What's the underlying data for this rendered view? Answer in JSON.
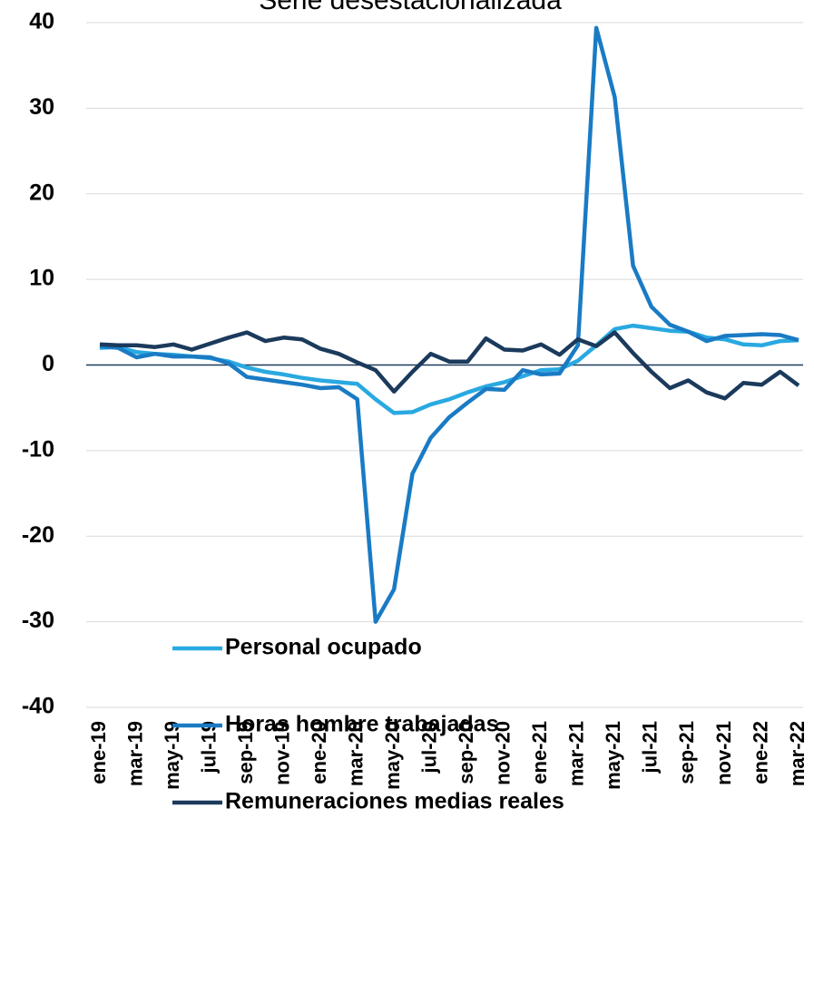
{
  "chart_data": {
    "type": "line",
    "title": "Serie desestacionalizada",
    "categories": [
      "ene-19",
      null,
      "mar-19",
      null,
      "may-19",
      null,
      "jul-19",
      null,
      "sep-19",
      null,
      "nov-19",
      null,
      "ene-20",
      null,
      "mar-20",
      null,
      "may-20",
      null,
      "jul-20",
      null,
      "sep-20",
      null,
      "nov-20",
      null,
      "ene-21",
      null,
      "mar-21",
      null,
      "may-21",
      null,
      "jul-21",
      null,
      "sep-21",
      null,
      "nov-21",
      null,
      "ene-22",
      null,
      "mar-22"
    ],
    "series": [
      {
        "name": "Personal ocupado",
        "color": "#29a9e1",
        "values": [
          2.0,
          2.1,
          1.5,
          1.3,
          1.2,
          1.0,
          0.8,
          0.4,
          -0.3,
          -0.8,
          -1.1,
          -1.5,
          -1.8,
          -2.0,
          -2.2,
          -4.0,
          -5.6,
          -5.5,
          -4.6,
          -4.0,
          -3.2,
          -2.5,
          -2.0,
          -1.3,
          -0.6,
          -0.5,
          0.5,
          2.3,
          4.2,
          4.6,
          4.3,
          4.0,
          3.9,
          3.2,
          3.0,
          2.4,
          2.3,
          2.8,
          2.9
        ]
      },
      {
        "name": "Horas hombre trabajadas",
        "color": "#1a7bc4",
        "values": [
          2.2,
          2.0,
          0.9,
          1.3,
          1.0,
          1.0,
          0.9,
          0.2,
          -1.4,
          -1.7,
          -2.0,
          -2.3,
          -2.7,
          -2.6,
          -4.0,
          -30.0,
          -26.2,
          -12.7,
          -8.5,
          -6.1,
          -4.4,
          -2.8,
          -2.9,
          -0.6,
          -1.1,
          -1.0,
          2.3,
          39.4,
          31.3,
          11.6,
          6.8,
          4.7,
          3.9,
          2.8,
          3.4,
          3.5,
          3.6,
          3.5,
          2.9
        ]
      },
      {
        "name": "Remuneraciones medias reales",
        "color": "#1b3a5c",
        "values": [
          2.4,
          2.3,
          2.3,
          2.1,
          2.4,
          1.8,
          2.5,
          3.2,
          3.8,
          2.8,
          3.2,
          3.0,
          1.9,
          1.3,
          0.3,
          -0.6,
          -3.1,
          -0.8,
          1.3,
          0.4,
          0.4,
          3.1,
          1.8,
          1.7,
          2.4,
          1.2,
          3.0,
          2.2,
          3.8,
          1.4,
          -0.8,
          -2.7,
          -1.8,
          -3.2,
          -3.9,
          -2.1,
          -2.3,
          -0.8,
          -2.4
        ]
      }
    ],
    "ylim": [
      -40,
      40
    ],
    "yticks": [
      -40,
      -30,
      -20,
      -10,
      0,
      10,
      20,
      30,
      40
    ],
    "grid": true,
    "legend": "bottom"
  }
}
